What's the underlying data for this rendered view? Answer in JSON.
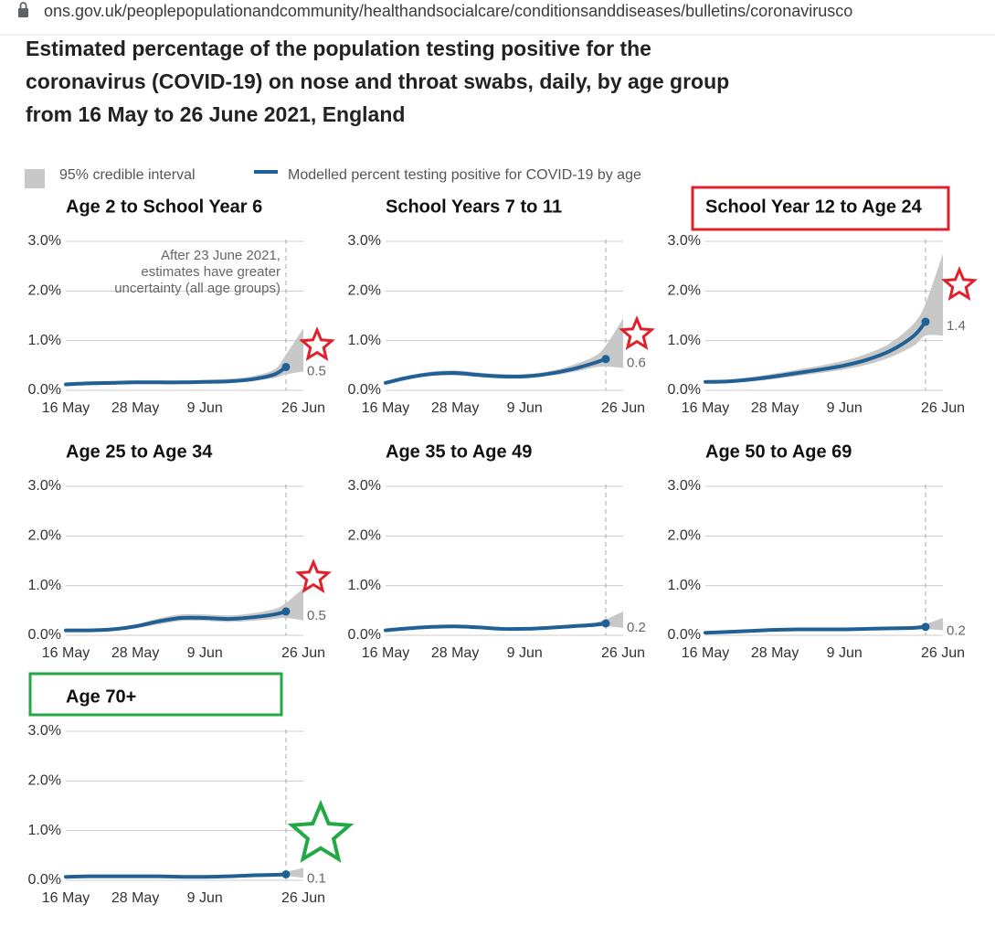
{
  "browser": {
    "url": "ons.gov.uk/peoplepopulationandcommunity/healthandsocialcare/conditionsanddiseases/bulletins/coronavirusco"
  },
  "title": [
    "Estimated percentage of the population testing positive for the",
    "coronavirus (COVID-19) on nose and throat swabs, daily, by age group",
    "from 16 May to 26 June 2021, England"
  ],
  "legend": [
    {
      "name": "95% credible interval",
      "color": "#c8c8c8"
    },
    {
      "name": "Modelled percent testing positive for COVID-19 by age",
      "color": "#206095"
    }
  ],
  "chart_data": [
    {
      "type": "line",
      "title": "Age 2 to School Year 6",
      "x": [
        "16 May",
        "20 May",
        "24 May",
        "28 May",
        "1 Jun",
        "5 Jun",
        "9 Jun",
        "13 Jun",
        "17 Jun",
        "21 Jun",
        "23 Jun",
        "26 Jun"
      ],
      "values": [
        0.12,
        0.14,
        0.15,
        0.16,
        0.16,
        0.16,
        0.17,
        0.18,
        0.22,
        0.32,
        0.47,
        null
      ],
      "lower": [
        0.09,
        0.11,
        0.12,
        0.13,
        0.13,
        0.13,
        0.14,
        0.15,
        0.18,
        0.25,
        0.32,
        0.38
      ],
      "upper": [
        0.16,
        0.18,
        0.19,
        0.2,
        0.2,
        0.2,
        0.21,
        0.23,
        0.28,
        0.42,
        0.72,
        1.25
      ],
      "value_labels": [
        null,
        null,
        null,
        null,
        null,
        null,
        null,
        null,
        null,
        null,
        "0.5",
        null
      ],
      "divider": "23 Jun",
      "annotation": [
        "After 23 June 2021,",
        "estimates have greater",
        "uncertainty (all age groups)"
      ],
      "xlim": [
        "16 May",
        "26 Jun"
      ],
      "xticks": [
        "16 May",
        "28 May",
        "9 Jun",
        "26 Jun"
      ],
      "ylim": [
        0,
        3
      ],
      "yticks": [
        {
          "value": 0,
          "label": "0.0%"
        },
        {
          "value": 1,
          "label": "1.0%"
        },
        {
          "value": 2,
          "label": "2.0%"
        },
        {
          "value": 3,
          "label": "3.0%"
        }
      ],
      "grid": true
    },
    {
      "type": "line",
      "title": "School Years 7 to 11",
      "x": [
        "16 May",
        "20 May",
        "24 May",
        "28 May",
        "1 Jun",
        "5 Jun",
        "9 Jun",
        "13 Jun",
        "17 Jun",
        "21 Jun",
        "23 Jun",
        "26 Jun"
      ],
      "values": [
        0.15,
        0.26,
        0.33,
        0.35,
        0.31,
        0.28,
        0.28,
        0.33,
        0.42,
        0.55,
        0.63,
        null
      ],
      "lower": [
        0.12,
        0.22,
        0.29,
        0.3,
        0.27,
        0.24,
        0.24,
        0.29,
        0.36,
        0.46,
        0.48,
        0.45
      ],
      "upper": [
        0.19,
        0.3,
        0.38,
        0.4,
        0.36,
        0.33,
        0.33,
        0.38,
        0.5,
        0.68,
        0.9,
        1.45
      ],
      "value_labels": [
        null,
        null,
        null,
        null,
        null,
        null,
        null,
        null,
        null,
        null,
        "0.6",
        null
      ],
      "divider": "23 Jun",
      "xlim": [
        "16 May",
        "26 Jun"
      ],
      "xticks": [
        "16 May",
        "28 May",
        "9 Jun",
        "26 Jun"
      ],
      "ylim": [
        0,
        3
      ],
      "yticks": [
        {
          "value": 0,
          "label": "0.0%"
        },
        {
          "value": 1,
          "label": "1.0%"
        },
        {
          "value": 2,
          "label": "2.0%"
        },
        {
          "value": 3,
          "label": "3.0%"
        }
      ],
      "grid": true
    },
    {
      "type": "line",
      "title": "School Year 12 to Age 24",
      "x": [
        "16 May",
        "20 May",
        "24 May",
        "28 May",
        "1 Jun",
        "5 Jun",
        "9 Jun",
        "13 Jun",
        "17 Jun",
        "21 Jun",
        "23 Jun",
        "26 Jun"
      ],
      "values": [
        0.17,
        0.18,
        0.22,
        0.28,
        0.35,
        0.42,
        0.5,
        0.62,
        0.8,
        1.1,
        1.38,
        null
      ],
      "lower": [
        0.14,
        0.15,
        0.18,
        0.23,
        0.29,
        0.35,
        0.42,
        0.52,
        0.67,
        0.9,
        1.1,
        1.1
      ],
      "upper": [
        0.2,
        0.22,
        0.27,
        0.34,
        0.42,
        0.5,
        0.6,
        0.74,
        0.96,
        1.35,
        1.75,
        2.75
      ],
      "value_labels": [
        null,
        null,
        null,
        null,
        null,
        null,
        null,
        null,
        null,
        null,
        "1.4",
        null
      ],
      "divider": "23 Jun",
      "xlim": [
        "16 May",
        "26 Jun"
      ],
      "xticks": [
        "16 May",
        "28 May",
        "9 Jun",
        "26 Jun"
      ],
      "ylim": [
        0,
        3
      ],
      "yticks": [
        {
          "value": 0,
          "label": "0.0%"
        },
        {
          "value": 1,
          "label": "1.0%"
        },
        {
          "value": 2,
          "label": "2.0%"
        },
        {
          "value": 3,
          "label": "3.0%"
        }
      ],
      "grid": true
    },
    {
      "type": "line",
      "title": "Age 25 to Age 34",
      "x": [
        "16 May",
        "20 May",
        "24 May",
        "28 May",
        "1 Jun",
        "5 Jun",
        "9 Jun",
        "13 Jun",
        "17 Jun",
        "21 Jun",
        "23 Jun",
        "26 Jun"
      ],
      "values": [
        0.1,
        0.1,
        0.12,
        0.18,
        0.28,
        0.35,
        0.35,
        0.33,
        0.36,
        0.42,
        0.48,
        null
      ],
      "lower": [
        0.08,
        0.08,
        0.09,
        0.14,
        0.22,
        0.29,
        0.29,
        0.27,
        0.29,
        0.33,
        0.35,
        0.3
      ],
      "upper": [
        0.12,
        0.13,
        0.15,
        0.22,
        0.34,
        0.42,
        0.42,
        0.4,
        0.44,
        0.53,
        0.65,
        0.95
      ],
      "value_labels": [
        null,
        null,
        null,
        null,
        null,
        null,
        null,
        null,
        null,
        null,
        "0.5",
        null
      ],
      "divider": "23 Jun",
      "xlim": [
        "16 May",
        "26 Jun"
      ],
      "xticks": [
        "16 May",
        "28 May",
        "9 Jun",
        "26 Jun"
      ],
      "ylim": [
        0,
        3
      ],
      "yticks": [
        {
          "value": 0,
          "label": "0.0%"
        },
        {
          "value": 1,
          "label": "1.0%"
        },
        {
          "value": 2,
          "label": "2.0%"
        },
        {
          "value": 3,
          "label": "3.0%"
        }
      ],
      "grid": true
    },
    {
      "type": "line",
      "title": "Age 35 to Age 49",
      "x": [
        "16 May",
        "20 May",
        "24 May",
        "28 May",
        "1 Jun",
        "5 Jun",
        "9 Jun",
        "13 Jun",
        "17 Jun",
        "21 Jun",
        "23 Jun",
        "26 Jun"
      ],
      "values": [
        0.1,
        0.14,
        0.17,
        0.18,
        0.16,
        0.13,
        0.13,
        0.15,
        0.18,
        0.21,
        0.24,
        null
      ],
      "lower": [
        0.08,
        0.12,
        0.14,
        0.15,
        0.13,
        0.11,
        0.11,
        0.12,
        0.15,
        0.17,
        0.18,
        0.15
      ],
      "upper": [
        0.12,
        0.16,
        0.2,
        0.21,
        0.19,
        0.16,
        0.16,
        0.18,
        0.22,
        0.26,
        0.32,
        0.48
      ],
      "value_labels": [
        null,
        null,
        null,
        null,
        null,
        null,
        null,
        null,
        null,
        null,
        "0.2",
        null
      ],
      "divider": "23 Jun",
      "xlim": [
        "16 May",
        "26 Jun"
      ],
      "xticks": [
        "16 May",
        "28 May",
        "9 Jun",
        "26 Jun"
      ],
      "ylim": [
        0,
        3
      ],
      "yticks": [
        {
          "value": 0,
          "label": "0.0%"
        },
        {
          "value": 1,
          "label": "1.0%"
        },
        {
          "value": 2,
          "label": "2.0%"
        },
        {
          "value": 3,
          "label": "3.0%"
        }
      ],
      "grid": true
    },
    {
      "type": "line",
      "title": "Age 50 to Age 69",
      "x": [
        "16 May",
        "20 May",
        "24 May",
        "28 May",
        "1 Jun",
        "5 Jun",
        "9 Jun",
        "13 Jun",
        "17 Jun",
        "21 Jun",
        "23 Jun",
        "26 Jun"
      ],
      "values": [
        0.05,
        0.07,
        0.09,
        0.11,
        0.12,
        0.12,
        0.12,
        0.13,
        0.14,
        0.15,
        0.17,
        null
      ],
      "lower": [
        0.04,
        0.06,
        0.08,
        0.09,
        0.1,
        0.1,
        0.1,
        0.11,
        0.12,
        0.13,
        0.13,
        0.1
      ],
      "upper": [
        0.06,
        0.08,
        0.1,
        0.13,
        0.14,
        0.14,
        0.14,
        0.15,
        0.17,
        0.19,
        0.23,
        0.35
      ],
      "value_labels": [
        null,
        null,
        null,
        null,
        null,
        null,
        null,
        null,
        null,
        null,
        "0.2",
        null
      ],
      "divider": "23 Jun",
      "xlim": [
        "16 May",
        "26 Jun"
      ],
      "xticks": [
        "16 May",
        "28 May",
        "9 Jun",
        "26 Jun"
      ],
      "ylim": [
        0,
        3
      ],
      "yticks": [
        {
          "value": 0,
          "label": "0.0%"
        },
        {
          "value": 1,
          "label": "1.0%"
        },
        {
          "value": 2,
          "label": "2.0%"
        },
        {
          "value": 3,
          "label": "3.0%"
        }
      ],
      "grid": true
    },
    {
      "type": "line",
      "title": "Age 70+",
      "x": [
        "16 May",
        "20 May",
        "24 May",
        "28 May",
        "1 Jun",
        "5 Jun",
        "9 Jun",
        "13 Jun",
        "17 Jun",
        "21 Jun",
        "23 Jun",
        "26 Jun"
      ],
      "values": [
        0.07,
        0.08,
        0.08,
        0.08,
        0.08,
        0.07,
        0.07,
        0.08,
        0.1,
        0.11,
        0.12,
        null
      ],
      "lower": [
        0.06,
        0.07,
        0.07,
        0.07,
        0.07,
        0.06,
        0.06,
        0.07,
        0.08,
        0.09,
        0.09,
        0.05
      ],
      "upper": [
        0.08,
        0.09,
        0.09,
        0.09,
        0.09,
        0.08,
        0.08,
        0.09,
        0.12,
        0.14,
        0.17,
        0.25
      ],
      "value_labels": [
        null,
        null,
        null,
        null,
        null,
        null,
        null,
        null,
        null,
        null,
        "0.1",
        null
      ],
      "divider": "23 Jun",
      "xlim": [
        "16 May",
        "26 Jun"
      ],
      "xticks": [
        "16 May",
        "28 May",
        "9 Jun",
        "26 Jun"
      ],
      "ylim": [
        0,
        3
      ],
      "yticks": [
        {
          "value": 0,
          "label": "0.0%"
        },
        {
          "value": 1,
          "label": "1.0%"
        },
        {
          "value": 2,
          "label": "2.0%"
        },
        {
          "value": 3,
          "label": "3.0%"
        }
      ],
      "grid": true
    }
  ]
}
